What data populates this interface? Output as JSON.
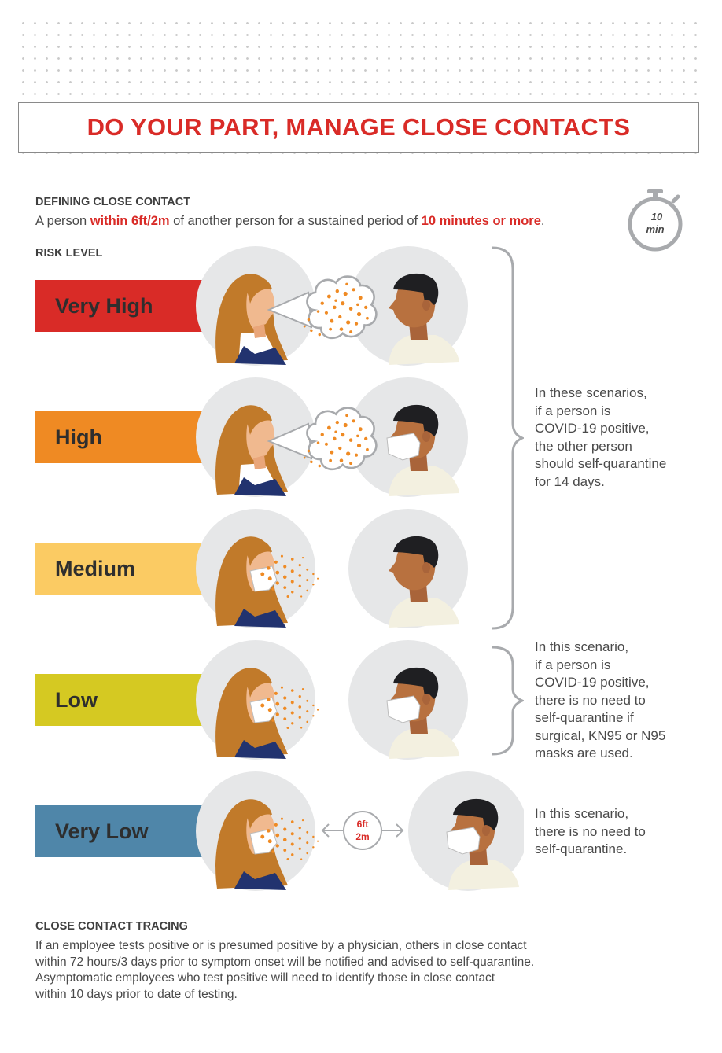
{
  "title": "DO YOUR PART, MANAGE CLOSE CONTACTS",
  "definition": {
    "heading": "DEFINING CLOSE CONTACT",
    "pre": "A person ",
    "distance": "within 6ft/2m",
    "mid": " of another person for a sustained period of ",
    "duration": "10 minutes or more",
    "post": "."
  },
  "timer": {
    "value": "10",
    "unit": "min"
  },
  "risk": {
    "heading": "RISK LEVEL",
    "levels": [
      {
        "label": "Very High",
        "color": "#d92b27"
      },
      {
        "label": "High",
        "color": "#ef8a23"
      },
      {
        "label": "Medium",
        "color": "#fbcb63"
      },
      {
        "label": "Low",
        "color": "#d5c922"
      },
      {
        "label": "Very Low",
        "color": "#4f86a9"
      }
    ]
  },
  "distance_badge": {
    "line1": "6ft",
    "line2": "2m"
  },
  "notes": {
    "group1": [
      "In these scenarios,",
      "if a person is",
      "COVID-19 positive,",
      "the other person",
      "should self-quarantine",
      "for 14 days."
    ],
    "group2": [
      "In this scenario,",
      "if a person is",
      "COVID-19 positive,",
      "there is no need to",
      "self-quarantine if",
      "surgical, KN95 or N95",
      "masks are used."
    ],
    "group3": [
      "In this scenario,",
      "there is no need to",
      "self-quarantine."
    ]
  },
  "tracing": {
    "heading": "CLOSE CONTACT TRACING",
    "lines": [
      "If an employee tests positive or is presumed positive by a physician, others in close contact",
      "within 72 hours/3 days prior to symptom onset will be notified and advised to self-quarantine.",
      "Asymptomatic employees who test positive will need to identify those in close contact",
      "within 10 days prior to date of testing."
    ]
  },
  "colors": {
    "accent": "#d92b27",
    "bracket": "#a8aaad",
    "circle": "#e6e7e8",
    "particles": "#ef8a23"
  }
}
